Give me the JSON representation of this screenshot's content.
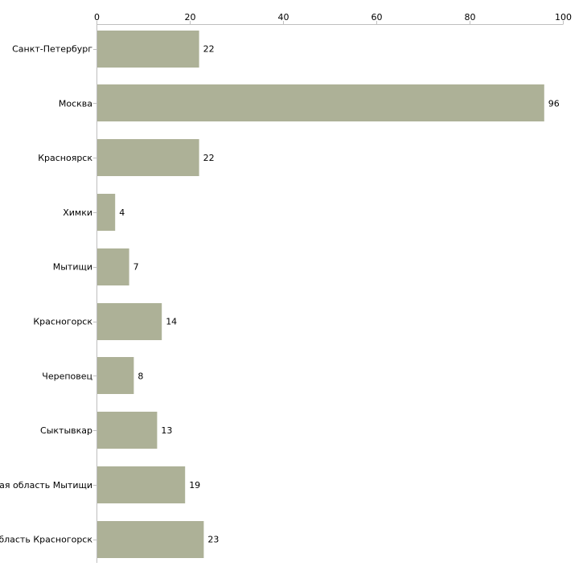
{
  "chart_data": {
    "type": "bar",
    "orientation": "horizontal",
    "title": "",
    "xlabel": "",
    "ylabel": "",
    "xlim": [
      0,
      100
    ],
    "x_ticks": [
      0,
      20,
      40,
      60,
      80,
      100
    ],
    "x_axis_position": "top",
    "grid": false,
    "categories": [
      "Санкт-Петербург",
      "Москва",
      "Красноярск",
      "Химки",
      "Мытищи",
      "Красногорск",
      "Череповец",
      "Сыктывкар",
      "Московская область Мытищи",
      "Московская область Красногорск"
    ],
    "values": [
      22,
      96,
      22,
      4,
      7,
      14,
      8,
      13,
      19,
      23
    ],
    "bar_color": "#adb197",
    "axis_color": "#bfbfbf"
  }
}
